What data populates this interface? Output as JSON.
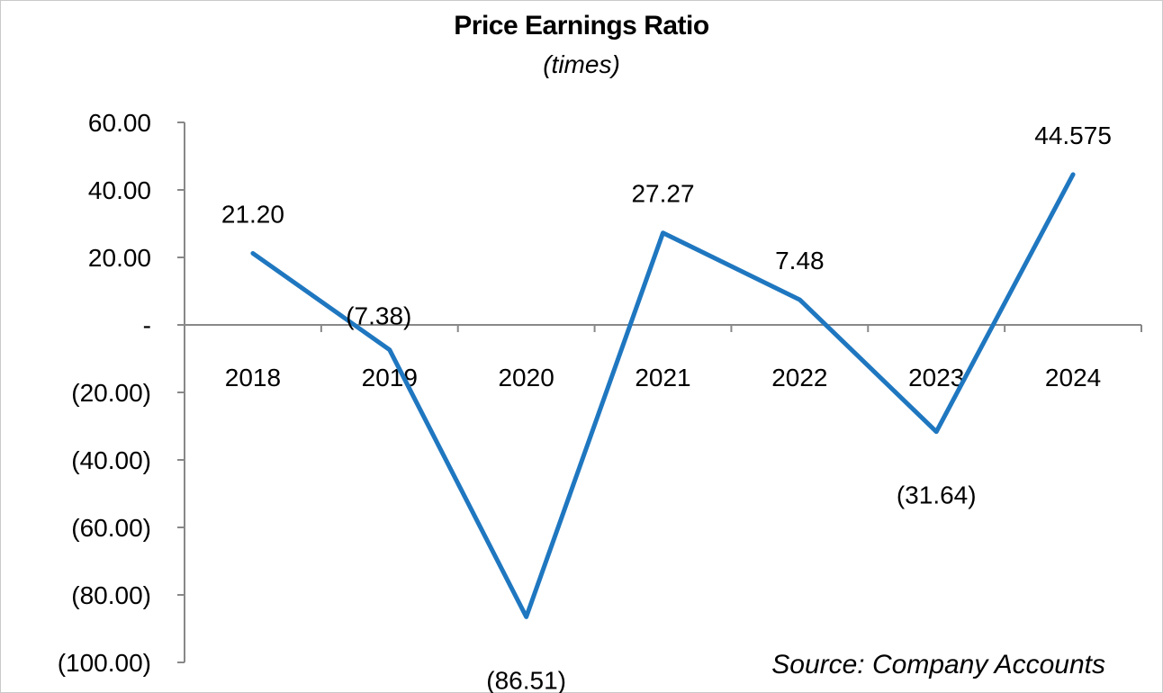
{
  "chart_data": {
    "type": "line",
    "title": "Price Earnings Ratio",
    "subtitle": "(times)",
    "categories": [
      "2018",
      "2019",
      "2020",
      "2021",
      "2022",
      "2023",
      "2024"
    ],
    "series": [
      {
        "values": [
          21.2,
          -7.38,
          -86.51,
          27.27,
          7.48,
          -31.64,
          44.575
        ],
        "data_labels": [
          "21.20",
          "(7.38)",
          "(86.51)",
          "27.27",
          "7.48",
          "(31.64)",
          "44.575"
        ],
        "color": "#1f77c0"
      }
    ],
    "ylim": [
      -100,
      60
    ],
    "yticks": [
      60,
      40,
      20,
      0,
      -20,
      -40,
      -60,
      -80,
      -100
    ],
    "ytick_labels": [
      "60.00",
      "40.00",
      "20.00",
      "-",
      "(20.00)",
      "(40.00)",
      "(60.00)",
      "(80.00)",
      "(100.00)"
    ],
    "grid": false,
    "legend": "none"
  },
  "source_note": "Source: Company Accounts"
}
